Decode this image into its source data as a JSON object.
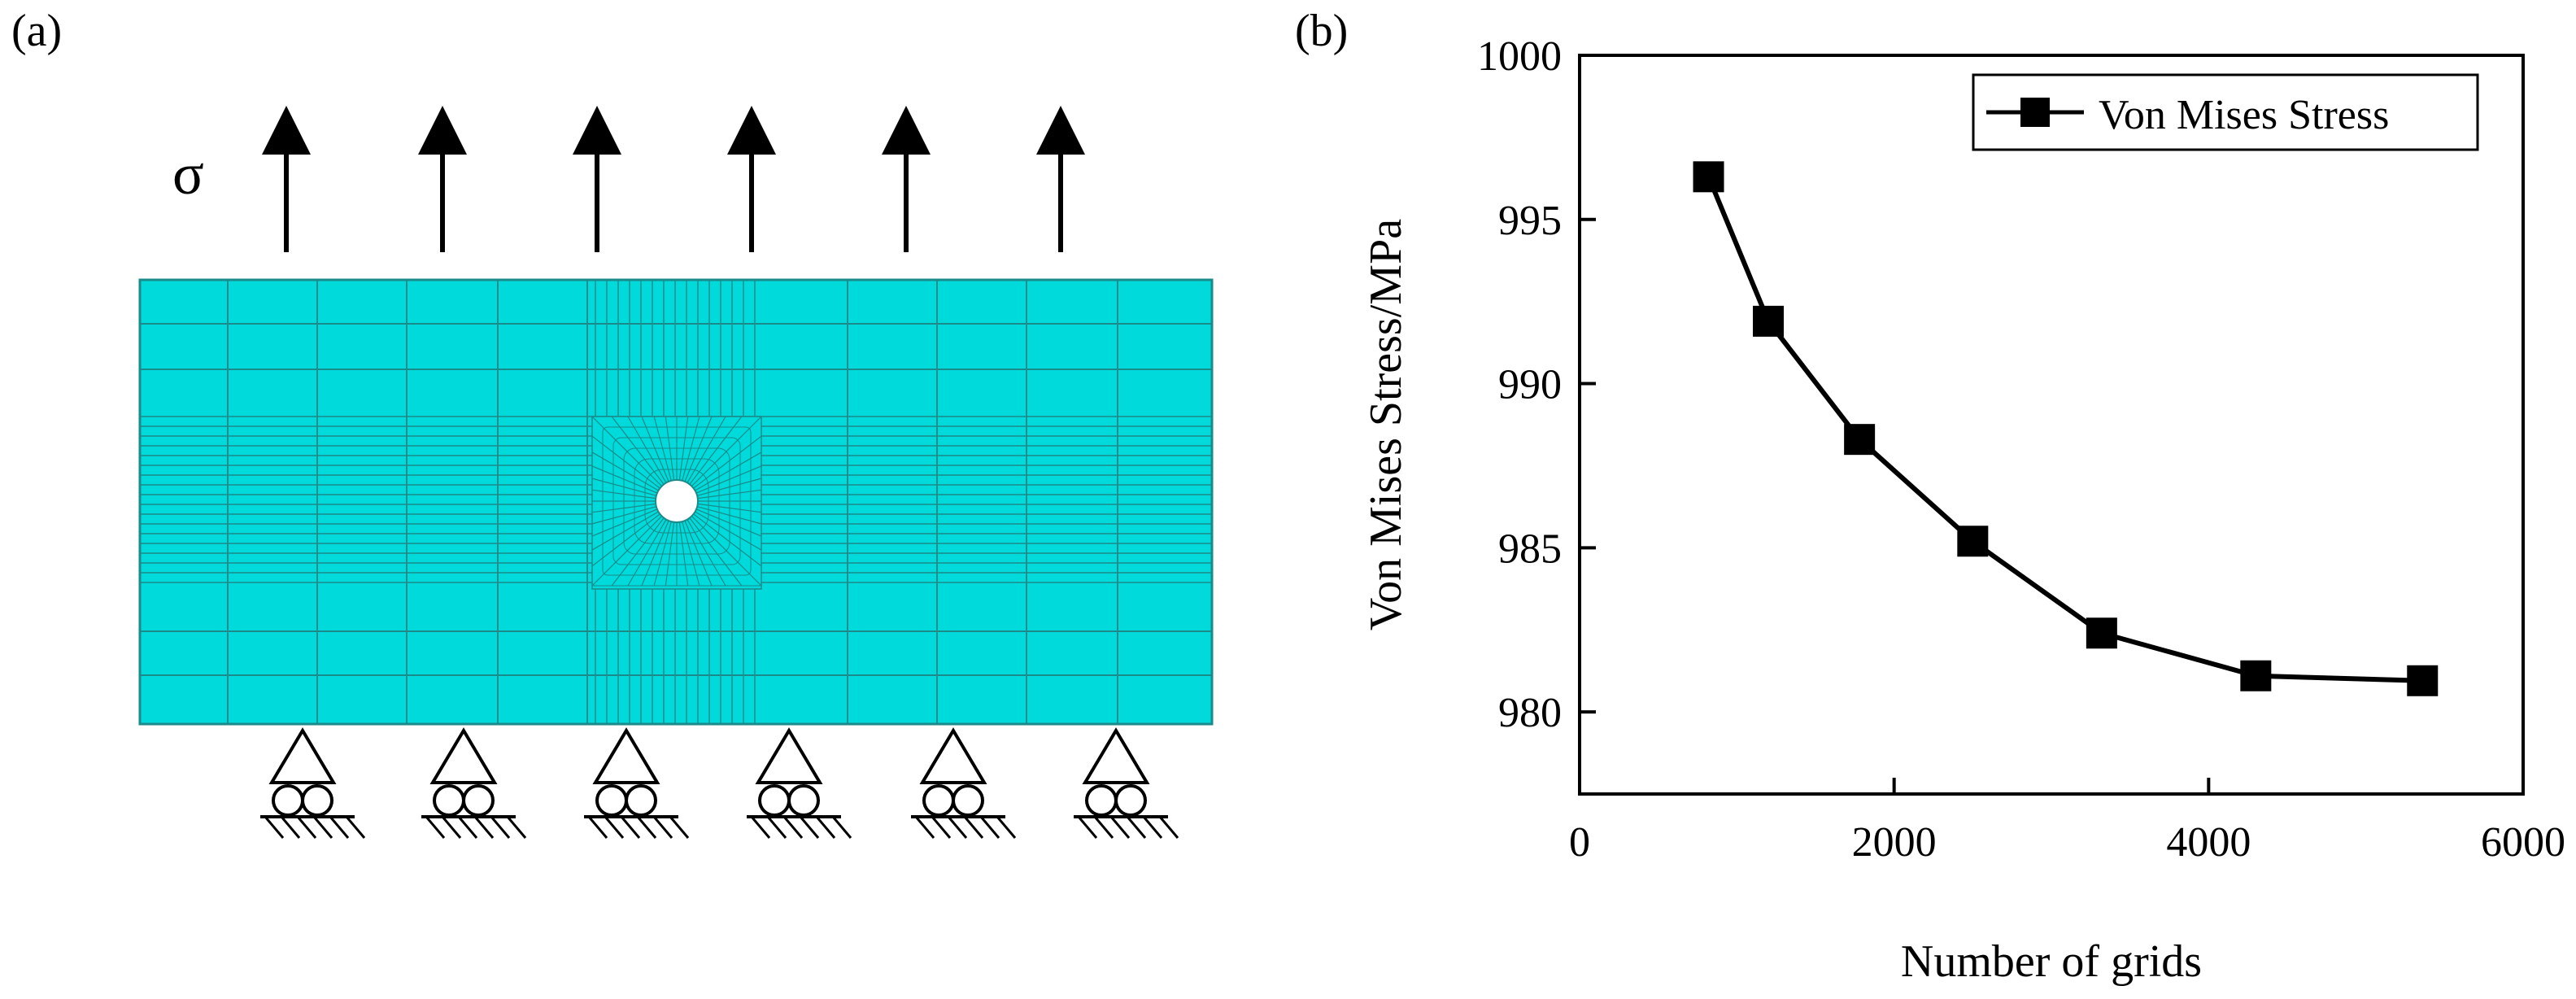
{
  "panel_a": {
    "label": "(a)",
    "load_symbol": "σ",
    "mesh_color": "#00dada",
    "mesh_line_color": "#1a8a8a"
  },
  "panel_b": {
    "label": "(b)"
  },
  "chart_data": {
    "type": "line",
    "title": "",
    "xlabel": "Number of grids",
    "ylabel": "Von Mises Stress/MPa",
    "xlim": [
      0,
      6000
    ],
    "ylim": [
      977.5,
      1000
    ],
    "xticks": [
      0,
      2000,
      4000,
      6000
    ],
    "yticks": [
      980,
      985,
      990,
      995,
      1000
    ],
    "grid": false,
    "legend_position": "top-right",
    "series": [
      {
        "name": "Von Mises Stress",
        "color": "#000000",
        "marker": "square",
        "x": [
          820,
          1200,
          1780,
          2500,
          3320,
          4300,
          5360
        ],
        "y": [
          996.3,
          991.9,
          988.3,
          985.2,
          982.4,
          981.1,
          980.95
        ]
      }
    ]
  }
}
